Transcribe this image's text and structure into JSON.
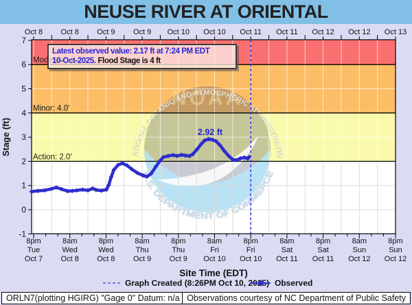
{
  "title": "NEUSE RIVER AT ORIENTAL",
  "colors": {
    "title_bg": "#82bfe6",
    "page_bg": "#dbdbf4",
    "moderate_zone": "#fa7070",
    "minor_zone": "#fbbd66",
    "action_zone": "#fafaad",
    "below_action_zone": "#ffffff",
    "observed_line": "#2e2ecc",
    "current_time_line": "#3a3ae8",
    "grid_on_color": "rgba(255,255,255,0.65)",
    "grid_on_white": "#dcdcdc",
    "info_text_blue": "#2626d8"
  },
  "info_box": {
    "line1": "Latest observed value: 2.17 ft at 7:24 PM EDT",
    "line2_date": "10-Oct-2025.",
    "line2_flood": "Flood Stage is 4 ft"
  },
  "watermark": {
    "noaa": "NOAA",
    "ring_top": "NATIONAL OCEANIC AND ATMOSPHERIC ADMINISTRATION",
    "ring_bottom": "U.S. DEPARTMENT OF COMMERCE"
  },
  "flood_labels": {
    "moderate": "Moderate: 6.0'",
    "minor": "Minor: 4.0'",
    "action": "Action: 2.0'"
  },
  "annotations": {
    "peak_label": "2.92 ft"
  },
  "axes": {
    "y_label": "Stage (ft)",
    "y_ticks": [
      7,
      6,
      5,
      4,
      3,
      2,
      1,
      0,
      -1
    ],
    "x_label": "Site Time (EDT)",
    "top_labels": [
      "Oct 8",
      "Oct 8",
      "Oct 9",
      "Oct 9",
      "Oct 10",
      "Oct 10",
      "Oct 11",
      "Oct 11",
      "Oct 12",
      "Oct 12",
      "Oct 13"
    ],
    "bottom_ticks": [
      [
        "8pm",
        "Tue",
        "Oct 7"
      ],
      [
        "8am",
        "Wed",
        "Oct 8"
      ],
      [
        "8pm",
        "Wed",
        "Oct 8"
      ],
      [
        "8am",
        "Thu",
        "Oct 9"
      ],
      [
        "8pm",
        "Thu",
        "Oct 9"
      ],
      [
        "8am",
        "Fri",
        "Oct 10"
      ],
      [
        "8pm",
        "Fri",
        "Oct 10"
      ],
      [
        "8am",
        "Sat",
        "Oct 11"
      ],
      [
        "8pm",
        "Sat",
        "Oct 11"
      ],
      [
        "8am",
        "Sun",
        "Oct 12"
      ],
      [
        "8pm",
        "Sun",
        "Oct 12"
      ]
    ]
  },
  "legend": {
    "graph_created": "Graph Created (8:26PM Oct 10, 2025)",
    "observed": "Observed"
  },
  "footer": {
    "left_box": "ORLN7(plotting HGIRG) \"Gage 0\" Datum: n/a",
    "right_box": "Observations courtesy of NC Department of Public Safety"
  },
  "chart_data": {
    "type": "line",
    "title": "NEUSE RIVER AT ORIENTAL",
    "xlabel": "Site Time (EDT)",
    "ylabel": "Stage (ft)",
    "ylim": [
      -1,
      7
    ],
    "x_start": "8pm Tue Oct 7",
    "x_end": "8pm Sun Oct 12",
    "x_major_tick_hours": 12,
    "grid_interval_hours": 6,
    "action_stage_ft": 2.0,
    "flood_stage_ft": 4.0,
    "moderate_stage_ft": 6.0,
    "latest_observed": {
      "value_ft": 2.17,
      "time": "7:24 PM EDT 10-Oct-2025"
    },
    "peak_observed_ft": 2.92,
    "current_time_line_hours": 72,
    "observed_hours_stage": [
      [
        -0.7,
        0.75
      ],
      [
        1.4,
        0.78
      ],
      [
        3.6,
        0.8
      ],
      [
        5.9,
        0.86
      ],
      [
        7.5,
        0.92
      ],
      [
        9.3,
        0.85
      ],
      [
        11.2,
        0.77
      ],
      [
        12.8,
        0.78
      ],
      [
        14.3,
        0.8
      ],
      [
        16.2,
        0.83
      ],
      [
        18.0,
        0.8
      ],
      [
        19.6,
        0.88
      ],
      [
        20.7,
        0.82
      ],
      [
        22.5,
        0.79
      ],
      [
        24.1,
        0.83
      ],
      [
        24.9,
        1.02
      ],
      [
        25.7,
        1.35
      ],
      [
        26.6,
        1.65
      ],
      [
        28.0,
        1.85
      ],
      [
        29.4,
        1.92
      ],
      [
        31.0,
        1.83
      ],
      [
        32.5,
        1.68
      ],
      [
        34.4,
        1.52
      ],
      [
        36.2,
        1.42
      ],
      [
        37.6,
        1.37
      ],
      [
        39.0,
        1.5
      ],
      [
        40.5,
        1.78
      ],
      [
        41.9,
        2.02
      ],
      [
        43.0,
        2.17
      ],
      [
        44.6,
        2.22
      ],
      [
        46.2,
        2.26
      ],
      [
        47.6,
        2.22
      ],
      [
        49.0,
        2.27
      ],
      [
        50.3,
        2.24
      ],
      [
        51.7,
        2.22
      ],
      [
        52.8,
        2.3
      ],
      [
        54.2,
        2.5
      ],
      [
        55.6,
        2.72
      ],
      [
        56.7,
        2.86
      ],
      [
        58.0,
        2.92
      ],
      [
        59.4,
        2.89
      ],
      [
        60.5,
        2.83
      ],
      [
        61.7,
        2.68
      ],
      [
        63.3,
        2.42
      ],
      [
        64.7,
        2.22
      ],
      [
        66.0,
        2.07
      ],
      [
        67.2,
        2.05
      ],
      [
        68.5,
        2.12
      ],
      [
        69.9,
        2.16
      ],
      [
        71.0,
        2.12
      ],
      [
        71.4,
        2.17
      ]
    ]
  }
}
